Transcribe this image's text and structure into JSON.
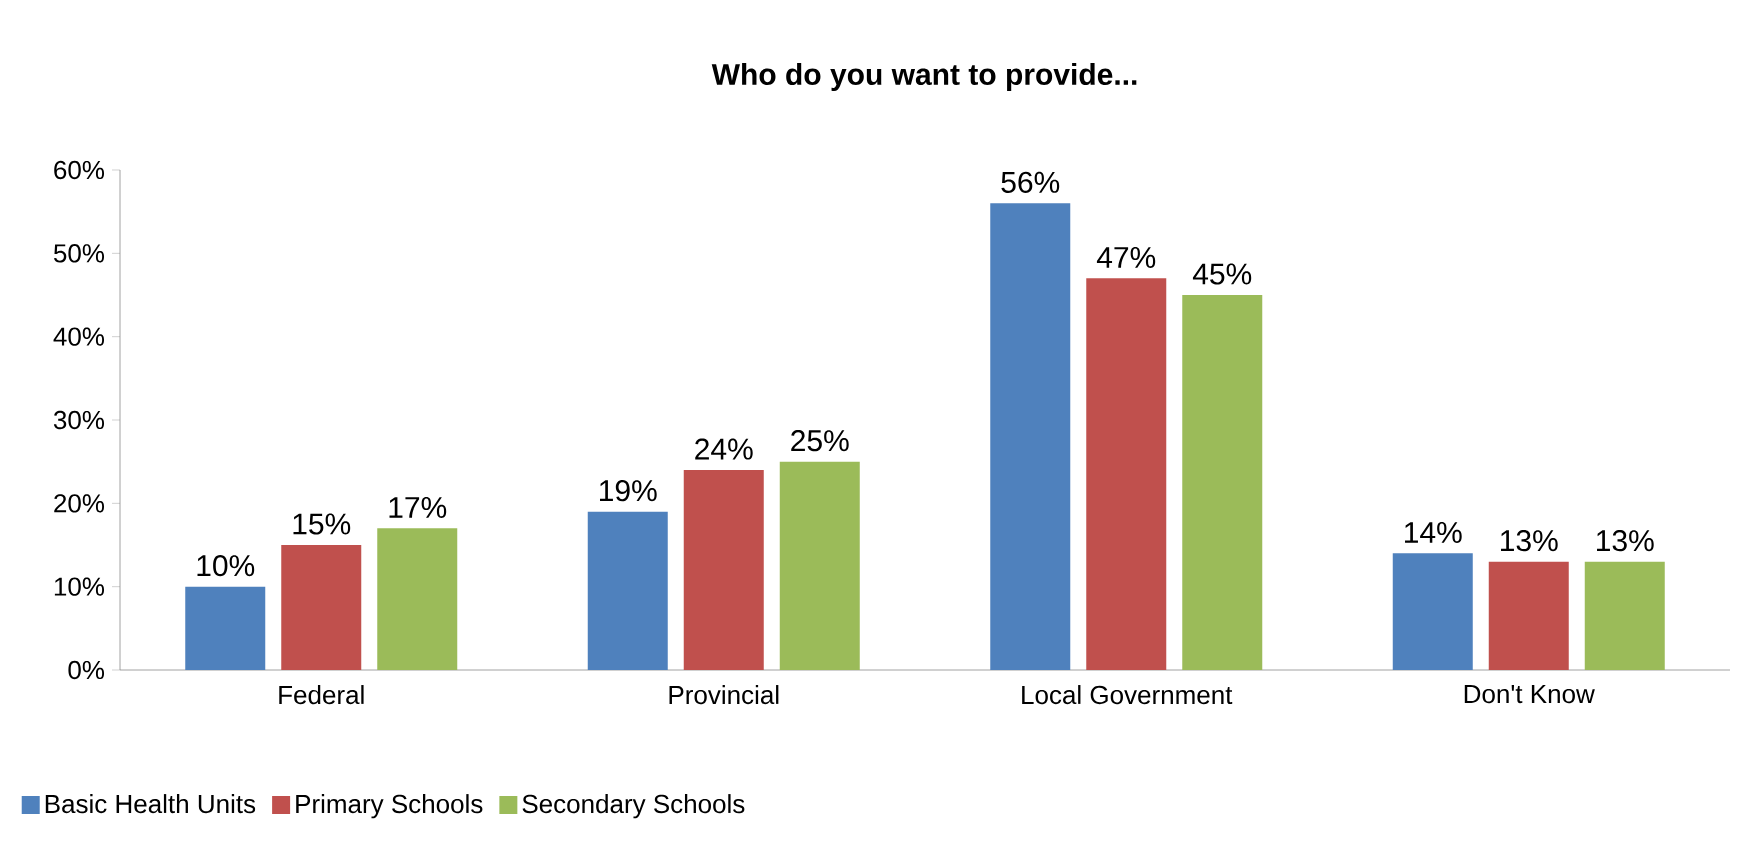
{
  "chart_data": {
    "type": "bar",
    "title": "Who do you want to provide...",
    "categories": [
      "Federal",
      "Provincial",
      "Local Government",
      "Don't Know"
    ],
    "series": [
      {
        "name": "Basic Health Units",
        "color": "#4f81bd",
        "values": [
          10,
          19,
          56,
          14
        ],
        "value_labels": [
          "10%",
          "19%",
          "56%",
          "14%"
        ]
      },
      {
        "name": "Primary Schools",
        "color": "#c0504d",
        "values": [
          15,
          24,
          47,
          13
        ],
        "value_labels": [
          "15%",
          "24%",
          "47%",
          "13%"
        ]
      },
      {
        "name": "Secondary Schools",
        "color": "#9bbb59",
        "values": [
          17,
          25,
          45,
          13
        ],
        "value_labels": [
          "17%",
          "25%",
          "45%",
          "13%"
        ]
      }
    ],
    "ylim": [
      0,
      60
    ],
    "yticks": [
      {
        "value": 0,
        "label": "0%"
      },
      {
        "value": 10,
        "label": "10%"
      },
      {
        "value": 20,
        "label": "20%"
      },
      {
        "value": 30,
        "label": "30%"
      },
      {
        "value": 40,
        "label": "40%"
      },
      {
        "value": 50,
        "label": "50%"
      },
      {
        "value": 60,
        "label": "60%"
      }
    ],
    "legend": "bottom",
    "grid": false
  }
}
